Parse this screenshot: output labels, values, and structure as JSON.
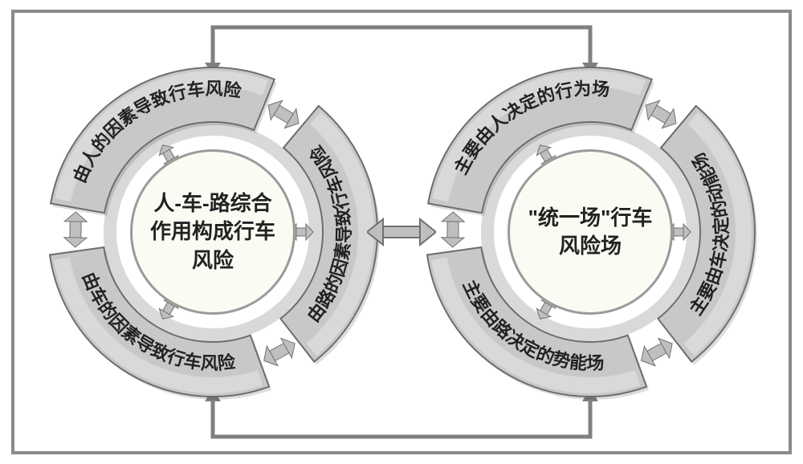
{
  "colors": {
    "frame_border": "#8a8a8a",
    "segment_fill": "#c8c8c8",
    "segment_highlight": "#e8e8e8",
    "segment_stroke": "#6d6d6d",
    "inner_ring_fill": "#d9d9d9",
    "center_fill": "#fbfbf3",
    "center_border": "#9a9a9a",
    "arrow_fill": "#bfbfbf",
    "arrow_stroke": "#707070",
    "connector_stroke": "#808080",
    "text": "#222222"
  },
  "left_circle": {
    "center_text": "人-车-路综合作用构成行车风险",
    "segments": [
      "由人的因素导致行车风险",
      "由路的因素导致行车风险",
      "由车的因素导致行车风险"
    ]
  },
  "right_circle": {
    "center_text": "\"统一场\"行车风险场",
    "segments": [
      "主要由人决定的行为场",
      "主要由车决定的动能场",
      "主要由路决定的势能场"
    ]
  },
  "geometry": {
    "outer_r": 205,
    "ring_inner_r": 137,
    "inner_band_r": 120,
    "gap_deg": 18,
    "seg_start_angles": [
      -170,
      -50,
      70
    ],
    "text_radius": 171,
    "font_size": 22,
    "arrow": {
      "w": 44,
      "h": 28
    }
  }
}
